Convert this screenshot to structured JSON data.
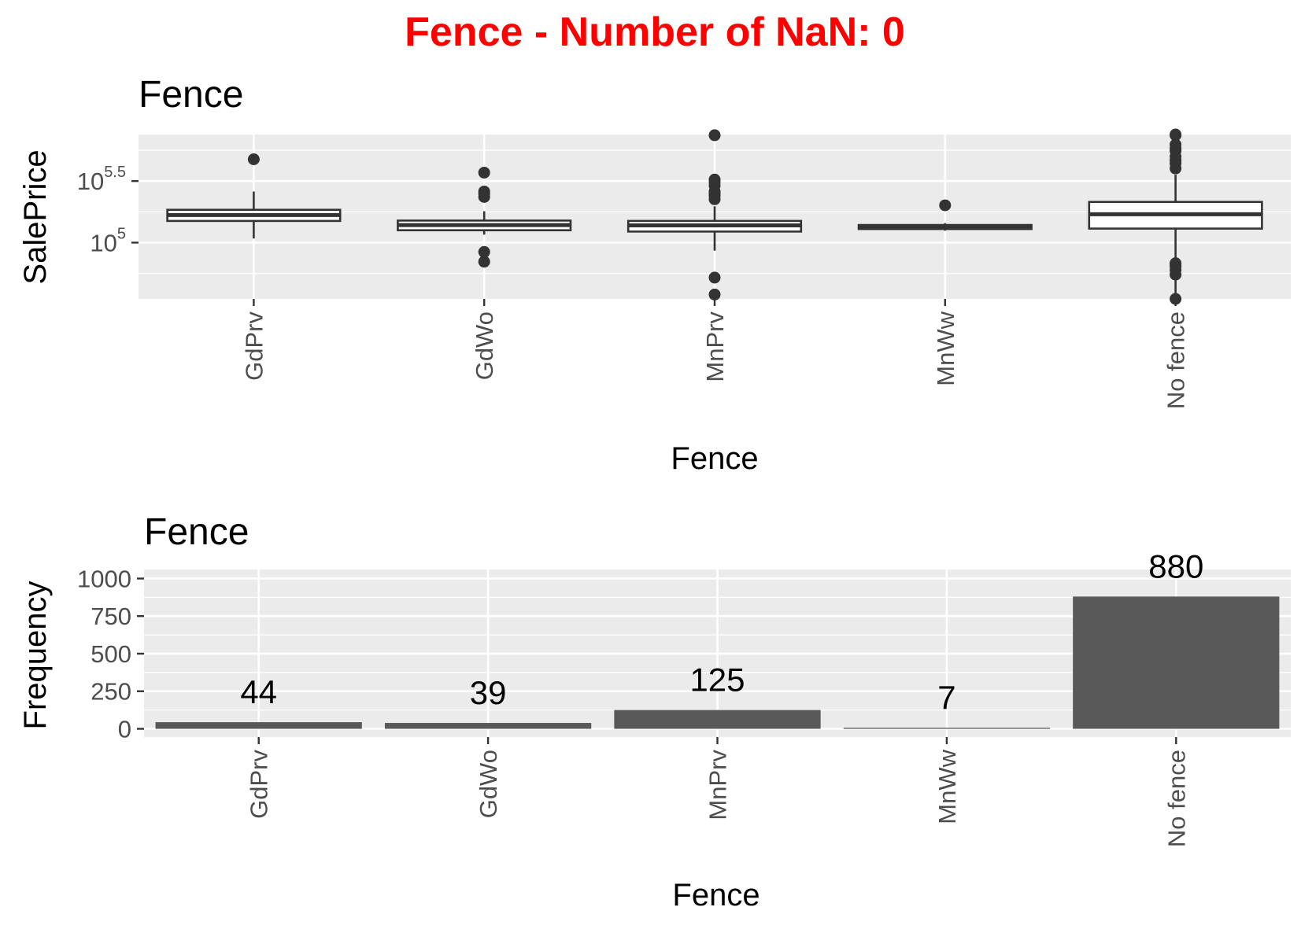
{
  "figure": {
    "title": "Fence - Number of NaN: 0",
    "colors": {
      "title": "#ff0000",
      "panel_background": "#ebebeb",
      "grid": "#ffffff",
      "bar_fill": "#595959",
      "box_line": "#333333",
      "box_fill": "#ffffff",
      "tick_text": "#4d4d4d"
    }
  },
  "chart_data": [
    {
      "type": "box",
      "title": "Fence",
      "xlabel": "Fence",
      "ylabel": "SalePrice",
      "y_scale": "log10",
      "categories": [
        "GdPrv",
        "GdWo",
        "MnPrv",
        "MnWw",
        "No fence"
      ],
      "x_tick_rotation": "vertical",
      "y_ticks": [
        {
          "value": 100000,
          "base": "10",
          "exponent": "5"
        },
        {
          "value": 316228,
          "base": "10",
          "exponent": "5.5"
        }
      ],
      "ylim": [
        34900,
        755000
      ],
      "grid": true,
      "boxes": [
        {
          "category": "GdPrv",
          "min": 108000,
          "q1": 150000,
          "median": 167500,
          "q3": 184750,
          "max": 260000,
          "outliers": [
            475000
          ]
        },
        {
          "category": "GdWo",
          "min": 116000,
          "q1": 126000,
          "median": 138750,
          "q3": 151000,
          "max": 180000,
          "outliers": [
            84000,
            70000,
            235000,
            250000,
            260000,
            370000
          ]
        },
        {
          "category": "MnPrv",
          "min": 86000,
          "q1": 123000,
          "median": 138000,
          "q3": 150000,
          "max": 197000,
          "outliers": [
            52000,
            37900,
            225000,
            240000,
            250000,
            260000,
            290000,
            310000,
            325000,
            745000
          ]
        },
        {
          "category": "MnWw",
          "min": 125000,
          "q1": 129000,
          "median": 133000,
          "q3": 139000,
          "max": 144000,
          "outliers": [
            201000
          ]
        },
        {
          "category": "No fence",
          "min": 35000,
          "q1": 130000,
          "median": 170000,
          "q3": 214000,
          "max": 356000,
          "outliers": [
            34900,
            55000,
            60000,
            64000,
            67000,
            68000,
            400000,
            440000,
            466000,
            500000,
            556000,
            582000,
            625000,
            745000,
            755000
          ]
        }
      ]
    },
    {
      "type": "bar",
      "title": "Fence",
      "xlabel": "Fence",
      "ylabel": "Frequency",
      "categories": [
        "GdPrv",
        "GdWo",
        "MnPrv",
        "MnWw",
        "No fence"
      ],
      "values": [
        44,
        39,
        125,
        7,
        880
      ],
      "data_labels": [
        "44",
        "39",
        "125",
        "7",
        "880"
      ],
      "x_tick_rotation": "vertical",
      "y_ticks": [
        0,
        250,
        500,
        750,
        1000
      ],
      "y_tick_labels": [
        "0",
        "250",
        "500",
        "750",
        "1000"
      ],
      "ylim": [
        -55,
        1060
      ],
      "grid": true
    }
  ]
}
